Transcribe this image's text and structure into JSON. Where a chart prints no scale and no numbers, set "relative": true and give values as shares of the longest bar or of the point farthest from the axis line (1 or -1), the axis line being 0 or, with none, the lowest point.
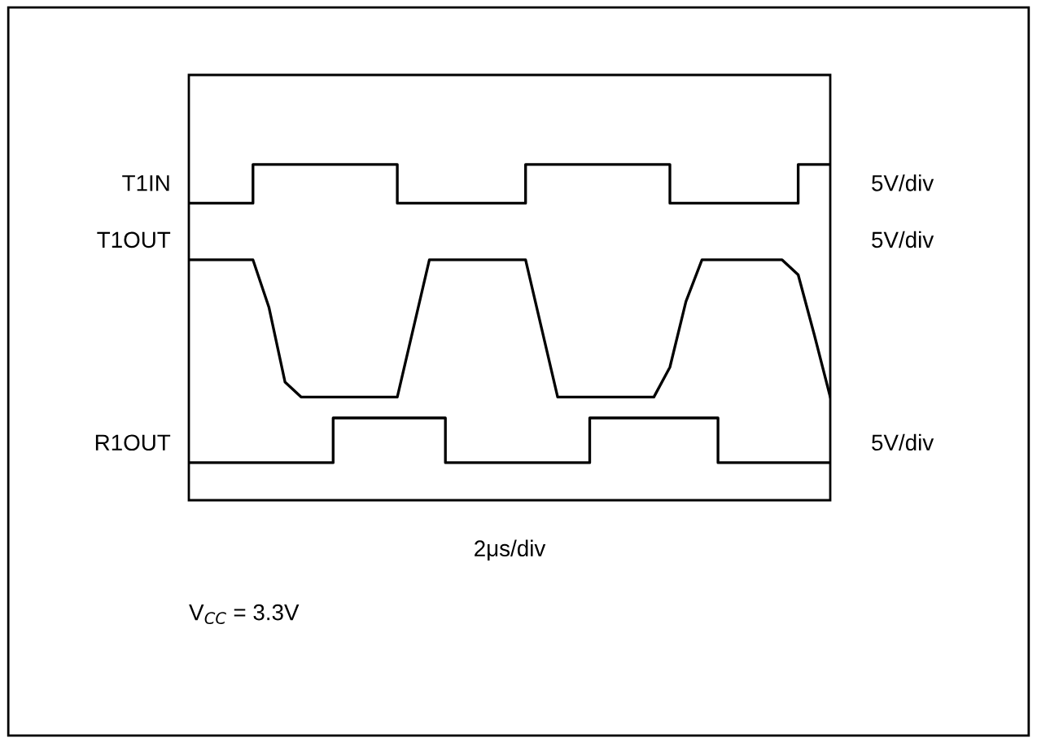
{
  "chart_data": {
    "type": "line",
    "relative": true,
    "xlabel": "2μs/div",
    "legend": false,
    "grid": false,
    "marker": "none",
    "line_style": "solid",
    "categories": [
      null,
      null,
      null,
      null,
      null,
      null,
      null,
      null,
      null,
      null,
      null,
      null,
      null,
      null,
      null,
      null,
      null,
      null,
      null,
      null,
      null,
      null,
      null,
      null,
      null,
      null,
      null,
      null,
      null,
      null,
      null,
      null,
      null,
      null,
      null,
      null,
      null,
      null,
      null,
      null,
      null
    ],
    "series": [
      {
        "name": "T1IN",
        "type": "step",
        "color": "#000000",
        "values": [
          0.87,
          0.87,
          0.87,
          0.87,
          1,
          1,
          1,
          1,
          1,
          1,
          1,
          1,
          1,
          0.87,
          0.87,
          0.87,
          0.87,
          0.87,
          0.87,
          0.87,
          0.87,
          1,
          1,
          1,
          1,
          1,
          1,
          1,
          1,
          1,
          0.87,
          0.87,
          0.87,
          0.87,
          0.87,
          0.87,
          0.87,
          0.87,
          1,
          1,
          1
        ]
      },
      {
        "name": "T1OUT",
        "color": "#000000",
        "values": [
          0.68,
          0.68,
          0.68,
          0.68,
          0.68,
          0.52,
          0.27,
          0.22,
          0.22,
          0.22,
          0.22,
          0.22,
          0.22,
          0.22,
          0.45,
          0.68,
          0.68,
          0.68,
          0.68,
          0.68,
          0.68,
          0.68,
          0.45,
          0.22,
          0.22,
          0.22,
          0.22,
          0.22,
          0.22,
          0.22,
          0.32,
          0.54,
          0.68,
          0.68,
          0.68,
          0.68,
          0.68,
          0.68,
          0.63,
          0.43,
          0.22
        ]
      },
      {
        "name": "R1OUT",
        "type": "step",
        "color": "#000000",
        "values": [
          0,
          0,
          0,
          0,
          0,
          0,
          0,
          0,
          0,
          0.15,
          0.15,
          0.15,
          0.15,
          0.15,
          0.15,
          0.15,
          0,
          0,
          0,
          0,
          0,
          0,
          0,
          0,
          0,
          0.15,
          0.15,
          0.15,
          0.15,
          0.15,
          0.15,
          0.15,
          0.15,
          0,
          0,
          0,
          0,
          0,
          0,
          0,
          0
        ]
      }
    ],
    "annotations": [
      "5V/div",
      "5V/div",
      "5V/div",
      "V$_{CC}$ = 3.3V"
    ]
  }
}
